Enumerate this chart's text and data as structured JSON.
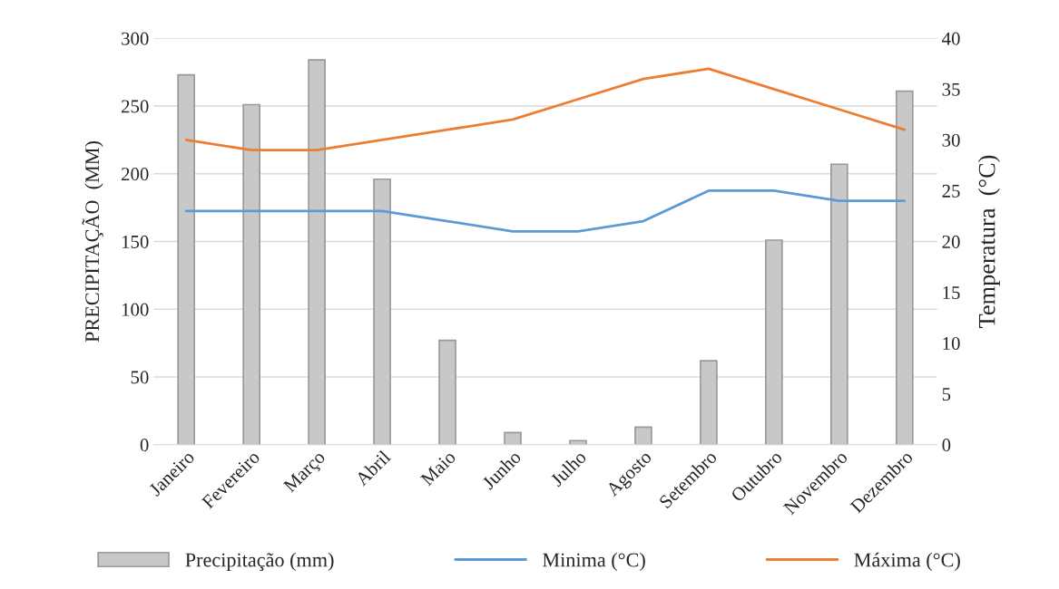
{
  "chart_data": {
    "type": "bar",
    "categories": [
      "Janeiro",
      "Fevereiro",
      "Março",
      "Abril",
      "Maio",
      "Junho",
      "Julho",
      "Agosto",
      "Setembro",
      "Outubro",
      "Novembro",
      "Dezembro"
    ],
    "ylabel": "PRECIPITAÇÃO  (MM)",
    "y2label": "Temperatura  (°C)",
    "series": [
      {
        "name": "Precipitação (mm)",
        "color": "#c8c8c8",
        "values": [
          273,
          251,
          284,
          196,
          77,
          9,
          3,
          13,
          62,
          151,
          207,
          261
        ]
      },
      {
        "name": "Minima (°C)",
        "color": "#5b9bd5",
        "type": "line",
        "axis": "y2",
        "values": [
          23,
          23,
          23,
          23,
          22,
          21,
          21,
          22,
          25,
          25,
          24,
          24
        ]
      },
      {
        "name": "Máxima (°C)",
        "color": "#ed7d31",
        "type": "line",
        "axis": "y2",
        "values": [
          30,
          29,
          29,
          30,
          31,
          32,
          34,
          36,
          37,
          35,
          33,
          31
        ]
      }
    ],
    "ylim": [
      0,
      300
    ],
    "yticks": [
      0,
      50,
      100,
      150,
      200,
      250,
      300
    ],
    "y2lim": [
      0,
      40
    ],
    "y2ticks": [
      0,
      5,
      10,
      15,
      20,
      25,
      30,
      35,
      40
    ],
    "grid": "y",
    "legend": "bottom"
  }
}
